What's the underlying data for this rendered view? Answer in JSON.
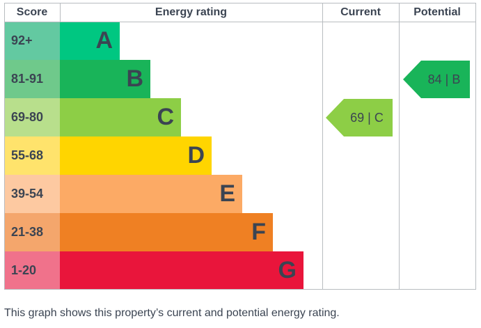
{
  "chart_data": {
    "type": "table",
    "headers": {
      "score": "Score",
      "rating": "Energy rating",
      "current": "Current",
      "potential": "Potential"
    },
    "bands": [
      {
        "score": "92+",
        "letter": "A",
        "color": "#00c781",
        "score_color": "#63c9a1"
      },
      {
        "score": "81-91",
        "letter": "B",
        "color": "#19b459",
        "score_color": "#6fc98b"
      },
      {
        "score": "69-80",
        "letter": "C",
        "color": "#8dce46",
        "score_color": "#b8df8c"
      },
      {
        "score": "55-68",
        "letter": "D",
        "color": "#ffd500",
        "score_color": "#ffe36c"
      },
      {
        "score": "39-54",
        "letter": "E",
        "color": "#fcaa65",
        "score_color": "#fdc9a1"
      },
      {
        "score": "21-38",
        "letter": "F",
        "color": "#ef8023",
        "score_color": "#f4a66c"
      },
      {
        "score": "1-20",
        "letter": "G",
        "color": "#e9153b",
        "score_color": "#f0728b"
      }
    ],
    "current": {
      "value": 69,
      "band": "C",
      "label": "69 | C",
      "color": "#8dce46"
    },
    "potential": {
      "value": 84,
      "band": "B",
      "label": "84 | B",
      "color": "#19b459"
    }
  },
  "caption": "This graph shows this property’s current and potential energy rating."
}
